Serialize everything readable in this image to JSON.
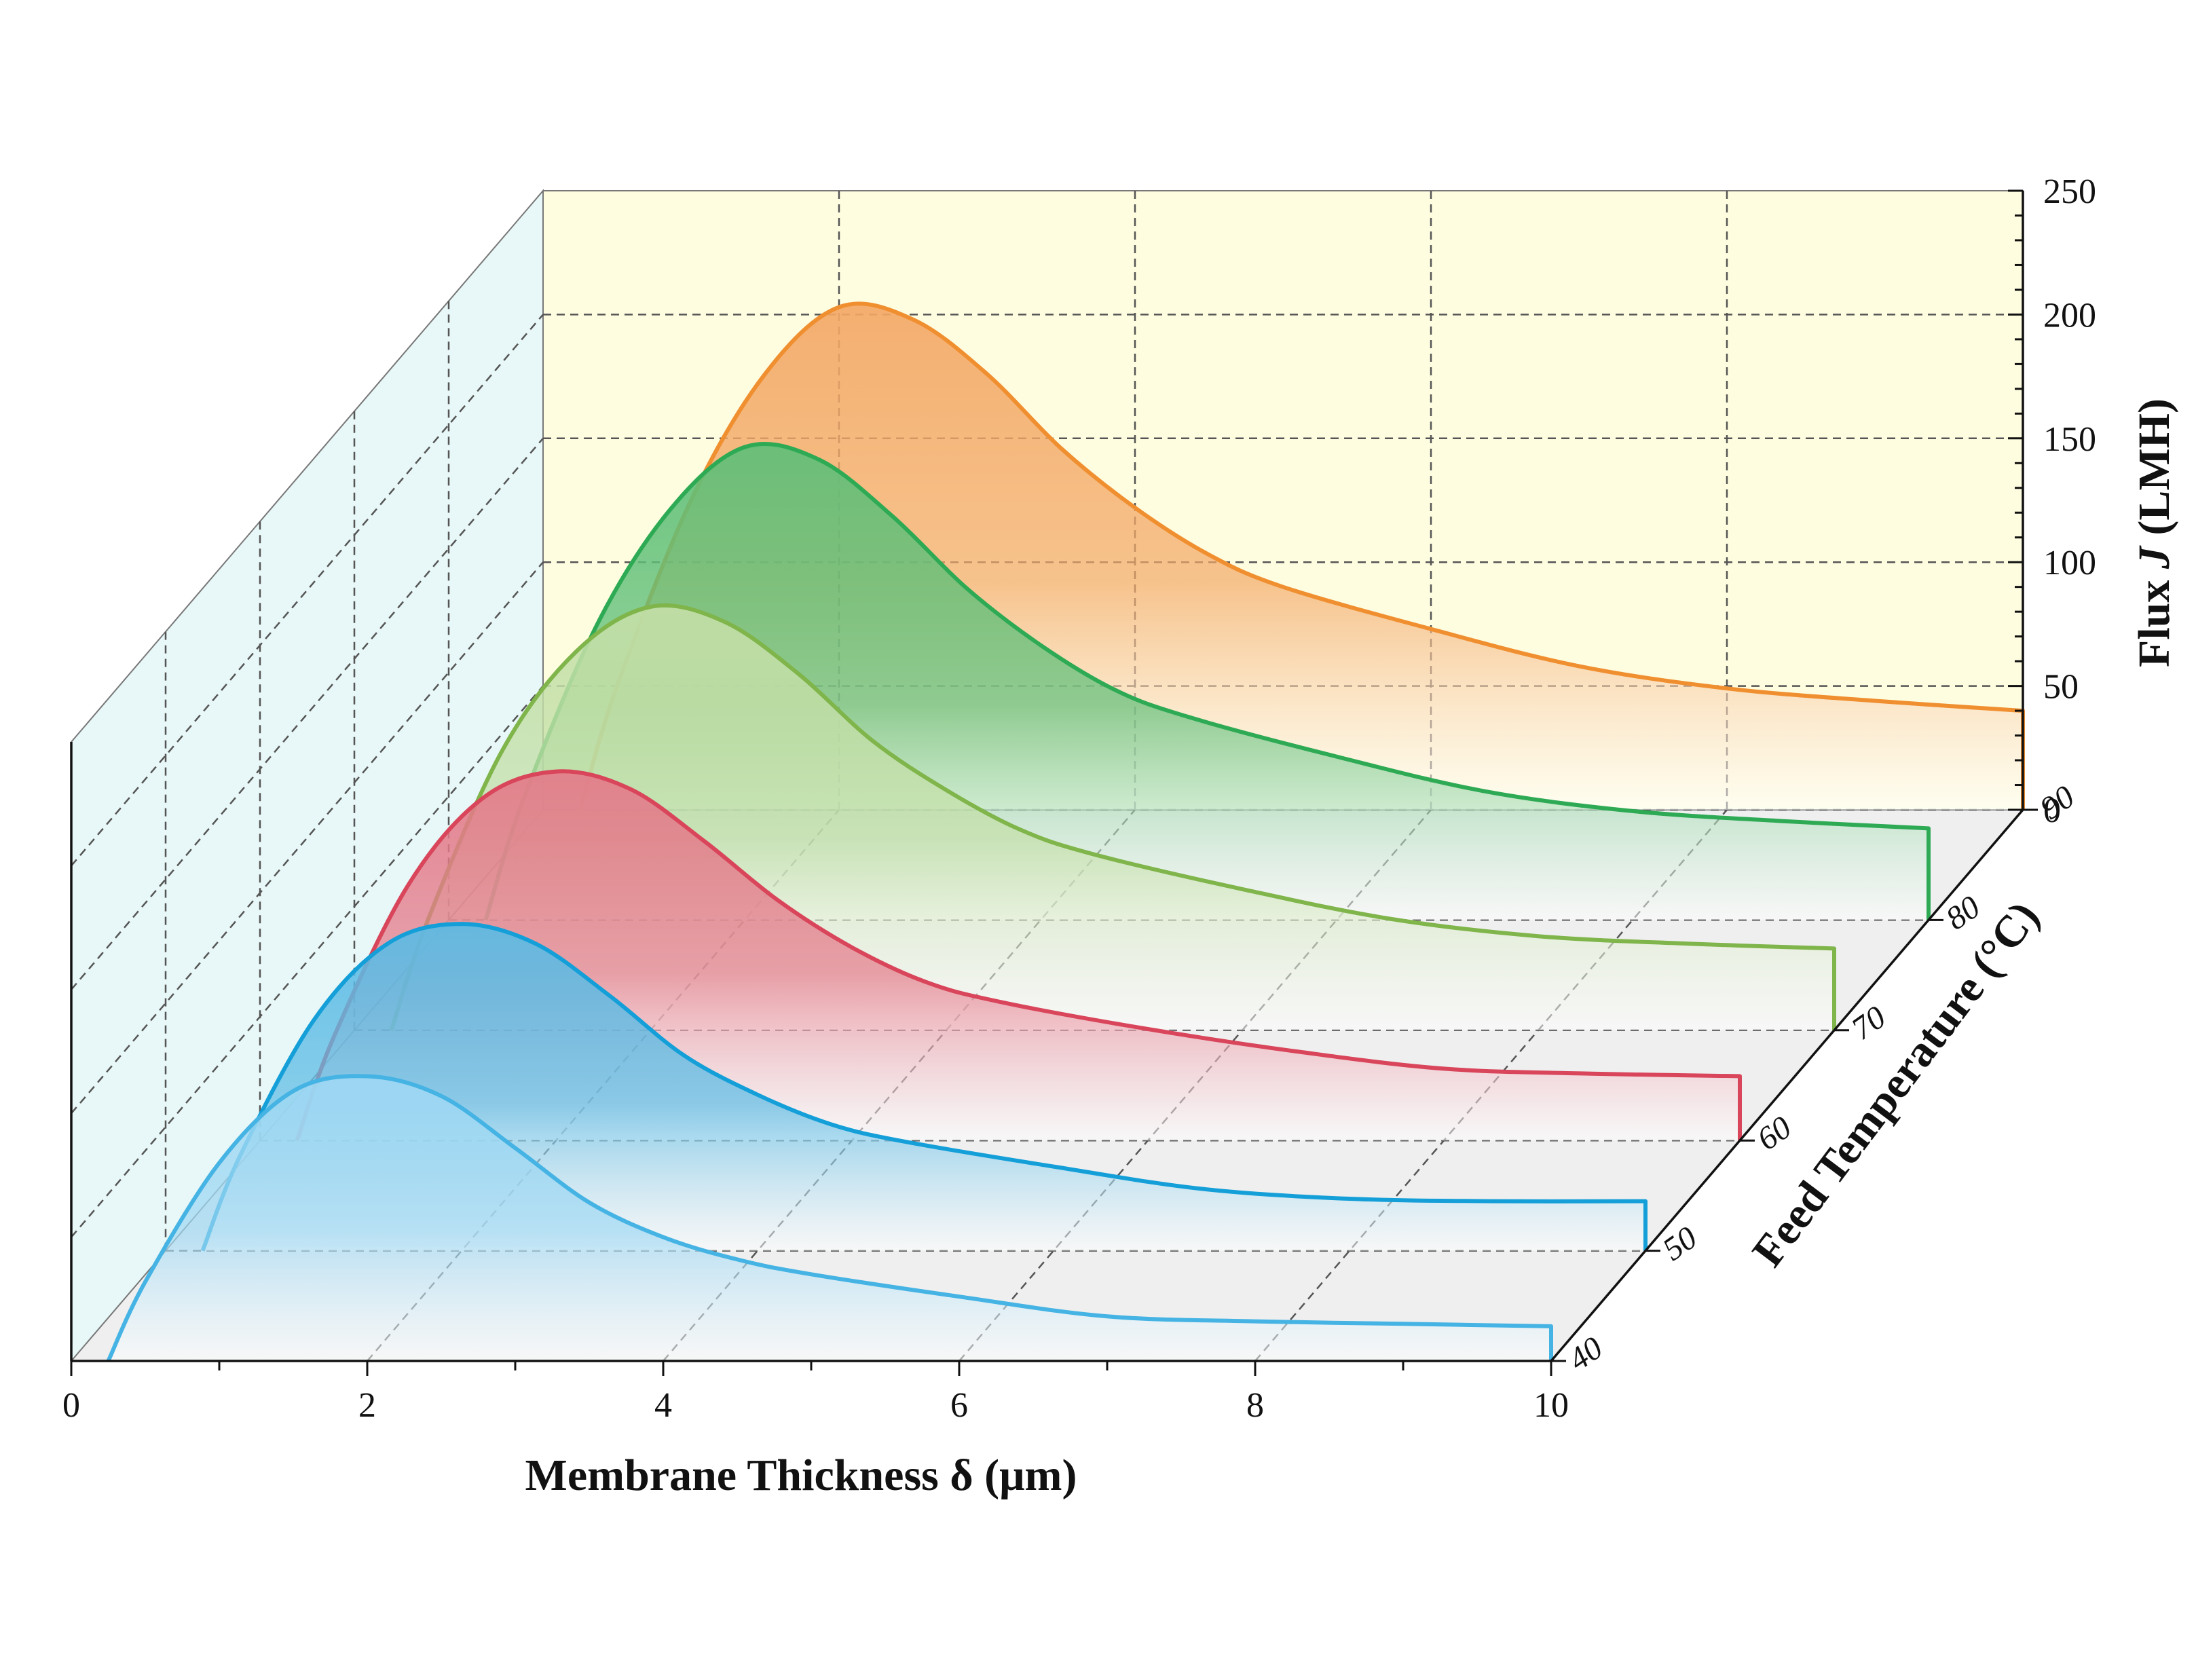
{
  "chart_data": {
    "type": "area",
    "subtype": "3d-waterfall",
    "title": "",
    "xlabel": "Membrane Thickness δ (μm)",
    "ylabel_prefix": "Flux ",
    "ylabel_italic": "J",
    "ylabel_suffix": " (LMH)",
    "zlabel": "Feed Temperature (°C)",
    "xlim": [
      0,
      10
    ],
    "ylim": [
      0,
      250
    ],
    "x_ticks": [
      "0",
      "2",
      "4",
      "6",
      "8",
      "10"
    ],
    "y_ticks": [
      "0",
      "50",
      "100",
      "150",
      "200",
      "250"
    ],
    "z_ticks": [
      "40",
      "50",
      "60",
      "70",
      "80",
      "90"
    ],
    "grid": true,
    "x": [
      0.25,
      0.5,
      1.0,
      1.5,
      2.0,
      2.5,
      3.0,
      3.5,
      4.0,
      4.5,
      5.0,
      6.0,
      7.0,
      8.0,
      9.0,
      10.0
    ],
    "series": [
      {
        "name": "40",
        "color": "#45b3e3",
        "fill": "#9fd8f3",
        "values": [
          0,
          32,
          80,
          109,
          115,
          107,
          86,
          64,
          50,
          41,
          35,
          26,
          18,
          16,
          15,
          14
        ]
      },
      {
        "name": "50",
        "color": "#149fd8",
        "fill": "#5bbbe5",
        "values": [
          0,
          38,
          93,
          124,
          132,
          124,
          103,
          79,
          63,
          51,
          44,
          34,
          25,
          21,
          20,
          20
        ]
      },
      {
        "name": "60",
        "color": "#d9455a",
        "fill": "#e47a89",
        "values": [
          0,
          42,
          103,
          138,
          149,
          142,
          121,
          97,
          78,
          64,
          56,
          45,
          36,
          29,
          27,
          26
        ]
      },
      {
        "name": "70",
        "color": "#7fb54a",
        "fill": "#c3dfa7",
        "values": [
          0,
          45,
          113,
          153,
          171,
          165,
          144,
          117,
          97,
          81,
          71,
          57,
          45,
          38,
          35,
          33
        ]
      },
      {
        "name": "80",
        "color": "#2eaa55",
        "fill": "#5fbf78",
        "values": [
          0,
          48,
          119,
          166,
          191,
          186,
          163,
          134,
          111,
          93,
          82,
          66,
          52,
          44,
          40,
          37
        ]
      },
      {
        "name": "90",
        "color": "#f08f30",
        "fill": "#f3a866",
        "values": [
          0,
          50,
          125,
          176,
          203,
          198,
          176,
          146,
          122,
          103,
          90,
          73,
          58,
          49,
          44,
          40
        ]
      }
    ],
    "colors": {
      "back_wall": "#fefde0",
      "side_wall": "#e8f7f7",
      "floor": "#efefef",
      "grid": "#555555"
    }
  }
}
